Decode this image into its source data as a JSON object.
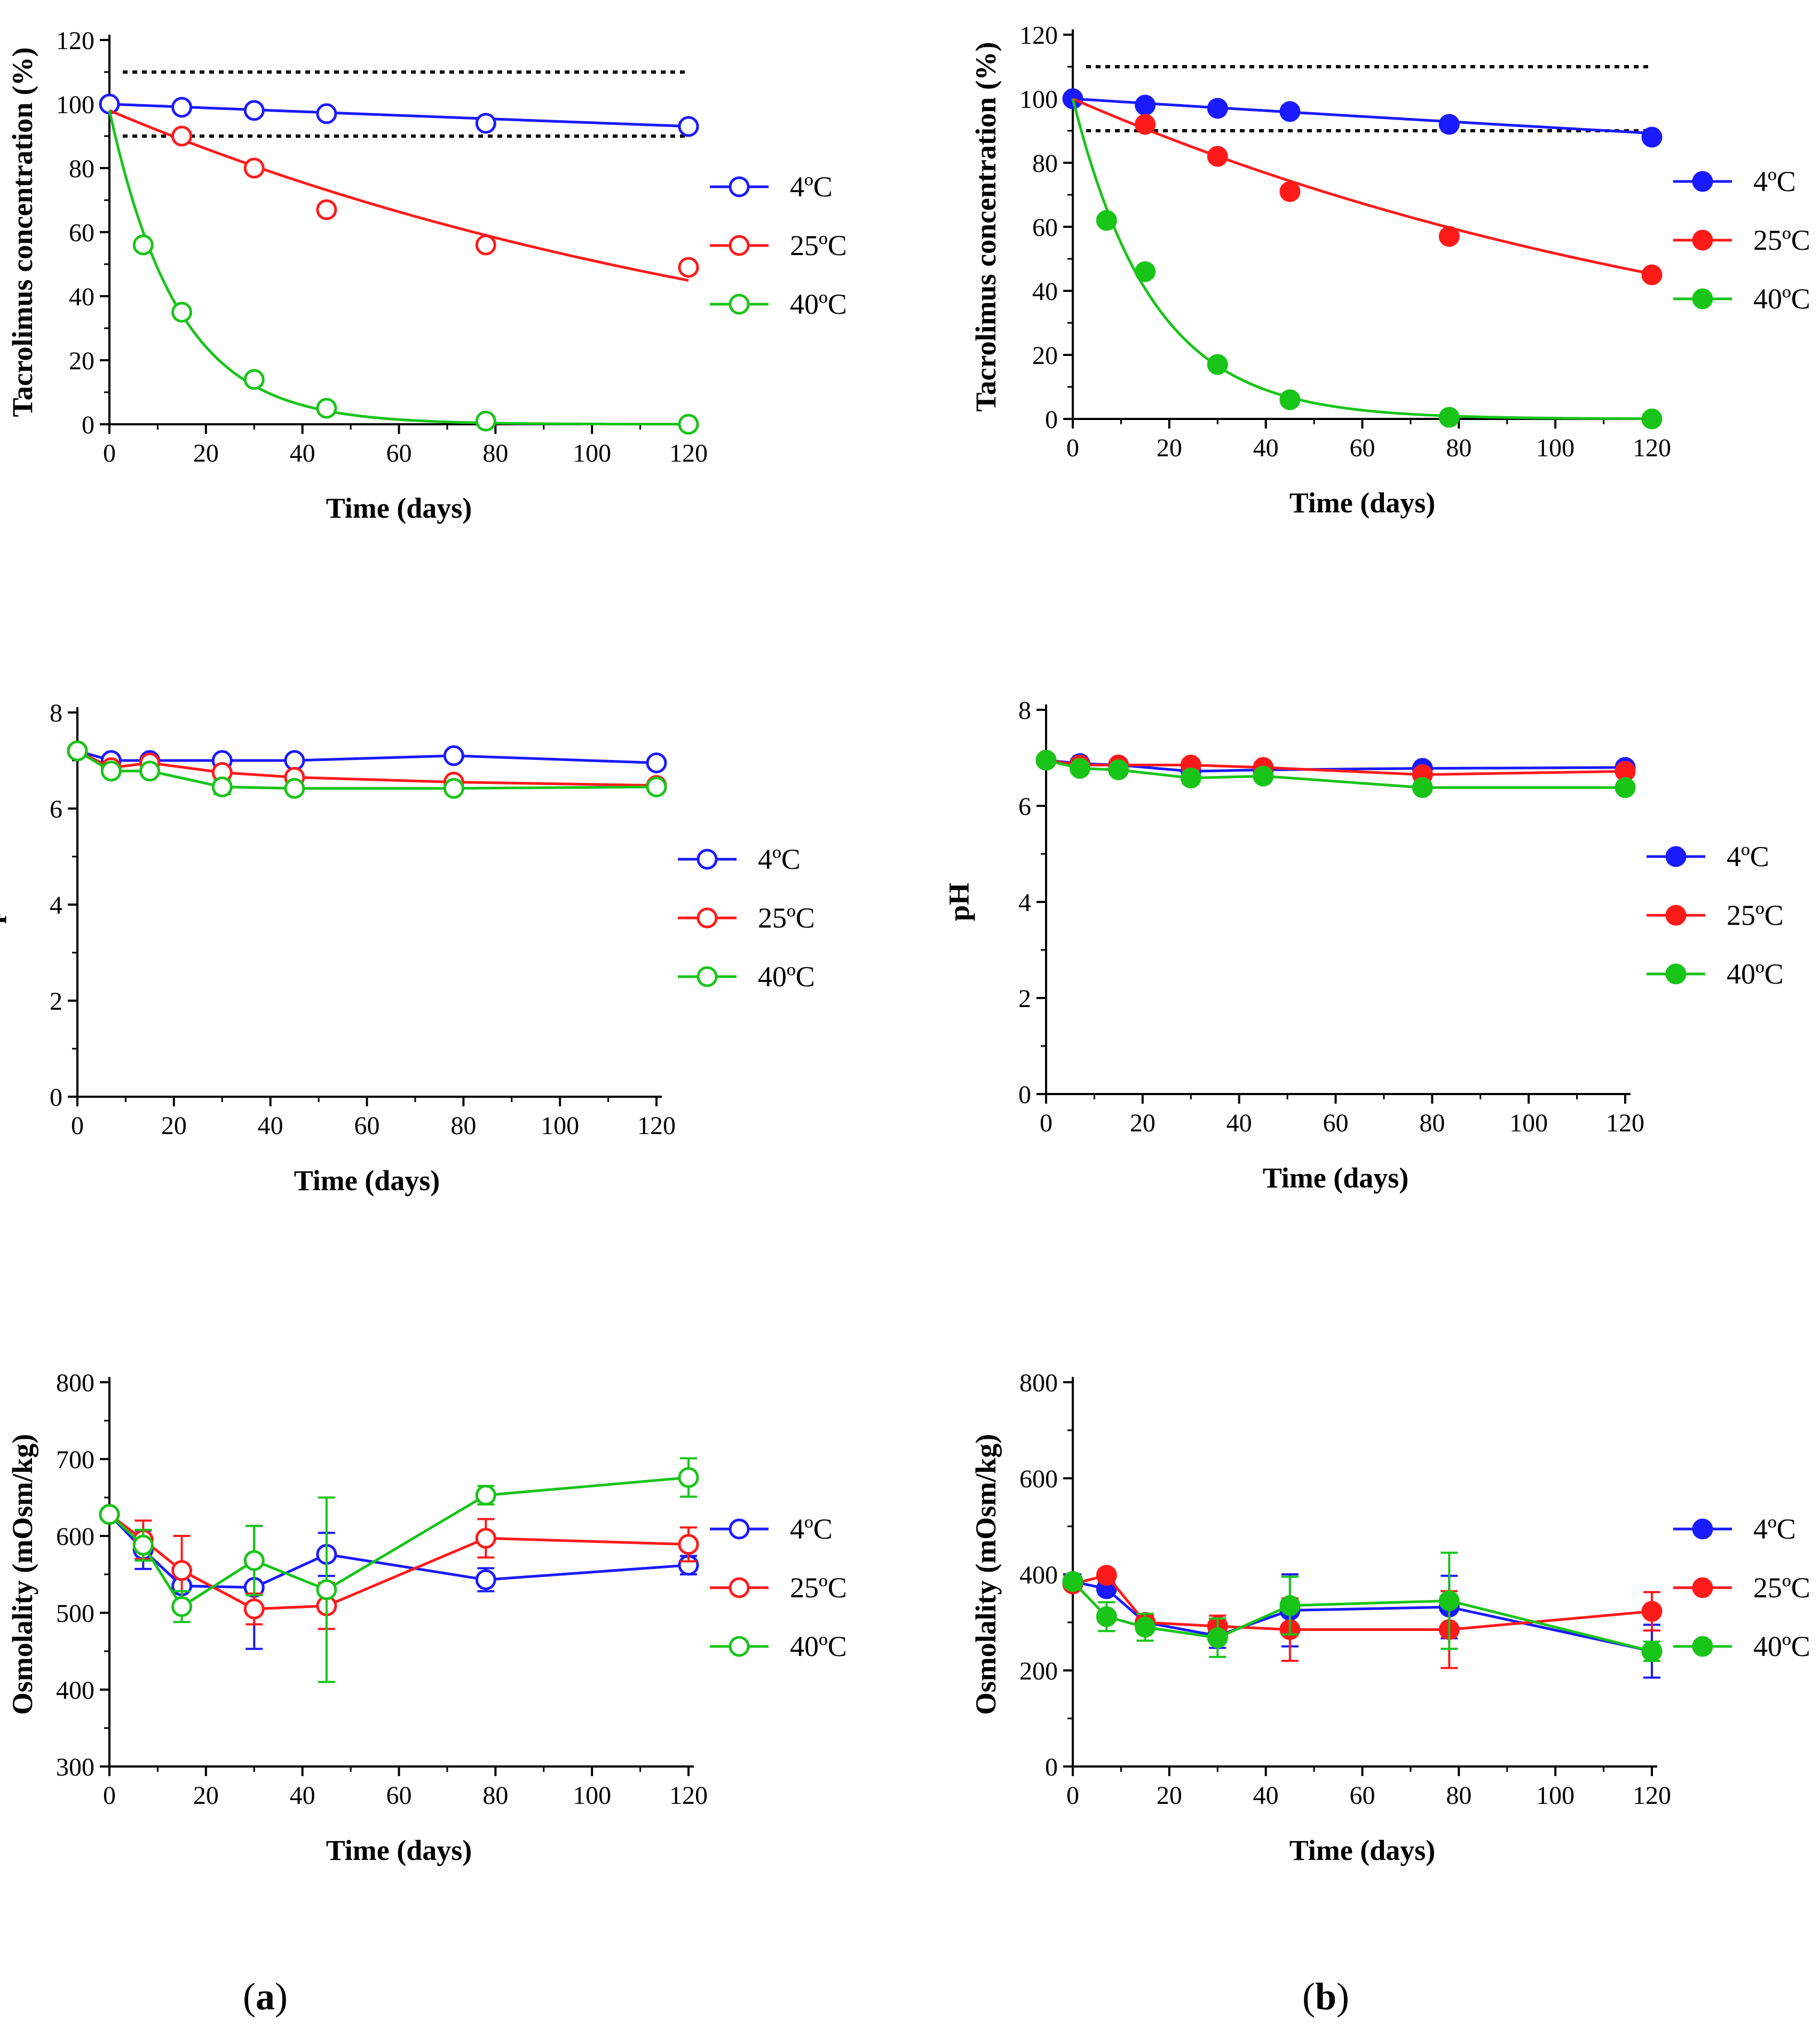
{
  "captions": {
    "a": "a",
    "b": "b"
  },
  "colors": {
    "4ºC": "#1a1aff",
    "25ºC": "#ff1a1a",
    "40ºC": "#18c418",
    "spec": "#000000"
  },
  "chart_data": [
    {
      "id": "conc-a",
      "column": "a",
      "type": "scatter",
      "marker": "open",
      "title": "",
      "xlabel": "Time (days)",
      "ylabel": "Tacrolimus concentration (%)",
      "xlim": [
        0,
        120
      ],
      "ylim": [
        0,
        120
      ],
      "xticks": [
        0,
        20,
        40,
        60,
        80,
        100,
        120
      ],
      "yticks": [
        0,
        20,
        40,
        60,
        80,
        100,
        120
      ],
      "legend_position": "right",
      "reference_lines": [
        110,
        90
      ],
      "series": [
        {
          "name": "4ºC",
          "x": [
            0,
            15,
            30,
            45,
            78,
            120
          ],
          "y": [
            100,
            99,
            98,
            97,
            94,
            93
          ],
          "fit": {
            "kind": "exp",
            "c0": 100,
            "k": 0.0006
          }
        },
        {
          "name": "25ºC",
          "x": [
            15,
            30,
            45,
            78,
            120
          ],
          "y": [
            90,
            80,
            67,
            56,
            49
          ],
          "fit": {
            "kind": "exp",
            "c0": 98,
            "k": 0.0065
          }
        },
        {
          "name": "40ºC",
          "x": [
            7,
            15,
            30,
            45,
            78,
            120
          ],
          "y": [
            56,
            35,
            14,
            5,
            1,
            0
          ],
          "fit": {
            "kind": "exp",
            "c0": 98,
            "k": 0.07
          }
        }
      ]
    },
    {
      "id": "conc-b",
      "column": "b",
      "type": "scatter",
      "marker": "filled",
      "title": "",
      "xlabel": "Time (days)",
      "ylabel": "Tacrolimus concentration (%)",
      "xlim": [
        0,
        120
      ],
      "ylim": [
        0,
        120
      ],
      "xticks": [
        0,
        20,
        40,
        60,
        80,
        100,
        120
      ],
      "yticks": [
        0,
        20,
        40,
        60,
        80,
        100,
        120
      ],
      "legend_position": "right",
      "reference_lines": [
        110,
        90
      ],
      "series": [
        {
          "name": "4ºC",
          "x": [
            0,
            15,
            30,
            45,
            78,
            120
          ],
          "y": [
            100,
            98,
            97,
            96,
            92,
            88
          ],
          "fit": {
            "kind": "exp",
            "c0": 100,
            "k": 0.00095
          }
        },
        {
          "name": "25ºC",
          "x": [
            15,
            30,
            45,
            78,
            120
          ],
          "y": [
            92,
            82,
            71,
            57,
            45
          ],
          "fit": {
            "kind": "exp",
            "c0": 100,
            "k": 0.0066
          }
        },
        {
          "name": "40ºC",
          "x": [
            7,
            15,
            30,
            45,
            78,
            120
          ],
          "y": [
            62,
            46,
            17,
            6,
            0.5,
            0
          ],
          "fit": {
            "kind": "exp",
            "c0": 100,
            "k": 0.06
          }
        }
      ]
    },
    {
      "id": "ph-a",
      "column": "a",
      "type": "line",
      "marker": "open",
      "title": "",
      "xlabel": "Time (days)",
      "ylabel": "pH",
      "xlim": [
        0,
        120
      ],
      "ylim": [
        0,
        8
      ],
      "xticks": [
        0,
        20,
        40,
        60,
        80,
        100,
        120
      ],
      "yticks": [
        0,
        2,
        4,
        6,
        8
      ],
      "legend_position": "right",
      "series": [
        {
          "name": "4ºC",
          "x": [
            0,
            7,
            15,
            30,
            45,
            78,
            120
          ],
          "y": [
            7.2,
            7.0,
            7.0,
            7.0,
            7.0,
            7.1,
            6.95
          ]
        },
        {
          "name": "25ºC",
          "x": [
            0,
            7,
            15,
            30,
            45,
            78,
            120
          ],
          "y": [
            7.2,
            6.85,
            6.95,
            6.75,
            6.65,
            6.55,
            6.48
          ]
        },
        {
          "name": "40ºC",
          "x": [
            0,
            7,
            15,
            30,
            45,
            78,
            120
          ],
          "y": [
            7.2,
            6.78,
            6.78,
            6.45,
            6.42,
            6.42,
            6.45
          ],
          "err": [
            0,
            0,
            0,
            0.15,
            0,
            0,
            0
          ]
        }
      ]
    },
    {
      "id": "ph-b",
      "column": "b",
      "type": "line",
      "marker": "filled",
      "title": "",
      "xlabel": "Time (days)",
      "ylabel": "pH",
      "xlim": [
        0,
        120
      ],
      "ylim": [
        0,
        8
      ],
      "xticks": [
        0,
        20,
        40,
        60,
        80,
        100,
        120
      ],
      "yticks": [
        0,
        2,
        4,
        6,
        8
      ],
      "legend_position": "right",
      "series": [
        {
          "name": "4ºC",
          "x": [
            0,
            7,
            15,
            30,
            45,
            78,
            120
          ],
          "y": [
            6.95,
            6.88,
            6.85,
            6.72,
            6.75,
            6.78,
            6.8
          ]
        },
        {
          "name": "25ºC",
          "x": [
            0,
            7,
            15,
            30,
            45,
            78,
            120
          ],
          "y": [
            6.95,
            6.85,
            6.85,
            6.85,
            6.8,
            6.65,
            6.72
          ]
        },
        {
          "name": "40ºC",
          "x": [
            0,
            7,
            15,
            30,
            45,
            78,
            120
          ],
          "y": [
            6.95,
            6.78,
            6.75,
            6.58,
            6.62,
            6.38,
            6.38
          ],
          "err": [
            0,
            0,
            0,
            0.12,
            0,
            0,
            0
          ]
        }
      ]
    },
    {
      "id": "osm-a",
      "column": "a",
      "type": "line",
      "marker": "open",
      "title": "",
      "xlabel": "Time (days)",
      "ylabel": "Osmolality (mOsm/kg)",
      "xlim": [
        0,
        120
      ],
      "ylim": [
        300,
        800
      ],
      "xticks": [
        0,
        20,
        40,
        60,
        80,
        100,
        120
      ],
      "yticks": [
        300,
        400,
        500,
        600,
        700,
        800
      ],
      "legend_position": "right",
      "series": [
        {
          "name": "4ºC",
          "x": [
            0,
            7,
            15,
            30,
            45,
            78,
            120
          ],
          "y": [
            628,
            582,
            535,
            533,
            576,
            543,
            562
          ],
          "err": [
            0,
            25,
            20,
            80,
            28,
            15,
            12
          ]
        },
        {
          "name": "25ºC",
          "x": [
            0,
            7,
            15,
            30,
            45,
            78,
            120
          ],
          "y": [
            628,
            595,
            555,
            505,
            509,
            597,
            589
          ],
          "err": [
            0,
            25,
            45,
            20,
            30,
            25,
            22
          ]
        },
        {
          "name": "40ºC",
          "x": [
            0,
            7,
            15,
            30,
            45,
            78,
            120
          ],
          "y": [
            628,
            588,
            508,
            568,
            530,
            653,
            676
          ],
          "err": [
            0,
            20,
            20,
            45,
            120,
            12,
            25
          ]
        }
      ]
    },
    {
      "id": "osm-b",
      "column": "b",
      "type": "line",
      "marker": "filled",
      "title": "",
      "xlabel": "Time (days)",
      "ylabel": "Osmolality (mOsm/kg)",
      "xlim": [
        0,
        120
      ],
      "ylim": [
        0,
        800
      ],
      "xticks": [
        0,
        20,
        40,
        60,
        80,
        100,
        120
      ],
      "yticks": [
        0,
        200,
        400,
        600,
        800
      ],
      "legend_position": "right",
      "series": [
        {
          "name": "4ºC",
          "x": [
            0,
            7,
            15,
            30,
            45,
            78,
            120
          ],
          "y": [
            385,
            370,
            300,
            272,
            325,
            332,
            240
          ],
          "err": [
            15,
            12,
            15,
            25,
            75,
            65,
            55
          ]
        },
        {
          "name": "25ºC",
          "x": [
            0,
            7,
            15,
            30,
            45,
            78,
            120
          ],
          "y": [
            380,
            398,
            300,
            292,
            285,
            285,
            323
          ],
          "err": [
            10,
            12,
            15,
            22,
            65,
            80,
            40
          ]
        },
        {
          "name": "40ºC",
          "x": [
            0,
            7,
            15,
            30,
            45,
            78,
            120
          ],
          "y": [
            385,
            312,
            290,
            268,
            335,
            345,
            240
          ],
          "err": [
            10,
            30,
            28,
            40,
            60,
            100,
            20
          ]
        }
      ]
    }
  ]
}
